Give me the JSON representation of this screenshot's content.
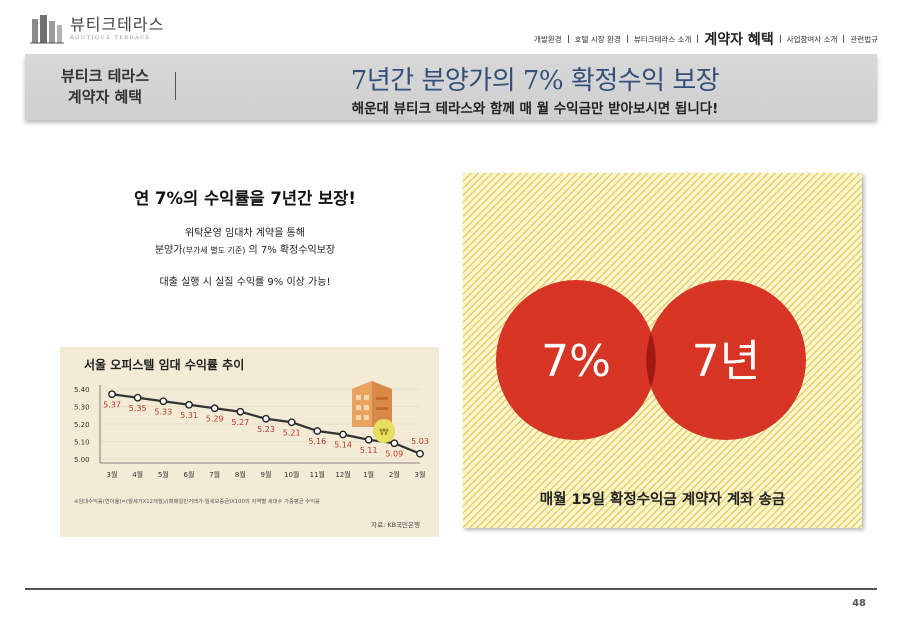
{
  "logo": {
    "brand_kor": "뷰티크테라스",
    "brand_eng": "BOUTIQUE TERRACE"
  },
  "nav": {
    "items": [
      "개발환경",
      "호텔 시장 환경",
      "뷰티크테라스 소개",
      "계약자 혜택",
      "사업참여사 소개",
      "관련법규"
    ],
    "active_index": 3
  },
  "banner": {
    "section_line1": "뷰티크 테라스",
    "section_line2": "계약자 혜택",
    "title": "7년간 분양가의 7% 확정수익 보장",
    "subtitle": "해운대 뷰티크 테라스와 함께 매 월 수익금만 받아보시면 됩니다!"
  },
  "content": {
    "headline": "연 7%의 수익률을 7년간 보장!",
    "line1": "위탁운영 임대차 계약을 통해",
    "line2_main": "분양가",
    "line2_small": "(부가세 별도 기준)",
    "line2_rest": " 의 7% 확정수익보장",
    "line3": "대출 실행 시 실질 수익률 9% 이상 가능!"
  },
  "chart_data": {
    "type": "line",
    "title": "서울 오피스텔 임대 수익률 추이",
    "categories": [
      "3월",
      "4월",
      "5월",
      "6월",
      "7월",
      "8월",
      "9월",
      "10월",
      "11월",
      "12월",
      "1월",
      "2월",
      "3월"
    ],
    "values": [
      5.37,
      5.35,
      5.33,
      5.31,
      5.29,
      5.27,
      5.23,
      5.21,
      5.16,
      5.14,
      5.11,
      5.09,
      5.03
    ],
    "ylim": [
      5.0,
      5.4
    ],
    "yticks": [
      "5.40",
      "5.30",
      "5.20",
      "5.10",
      "5.00"
    ],
    "footnote": "※임대수익률(연이율)=(월세가X12개월)/(매매일반거래가-월세보증금)X100의 지역별 세대수 가중평균 수익률",
    "source": "자료: KB국민은행",
    "colors": {
      "line": "#333333",
      "label": "#c0392b",
      "background": "#f3ebd6"
    }
  },
  "graphic": {
    "circle_left_label": "7%",
    "circle_right_label": "7년",
    "caption": "매월 15일 확정수익금 계약자 계좌 송금",
    "circle_color": "#d52b1e"
  },
  "footer": {
    "page_number": "48"
  }
}
